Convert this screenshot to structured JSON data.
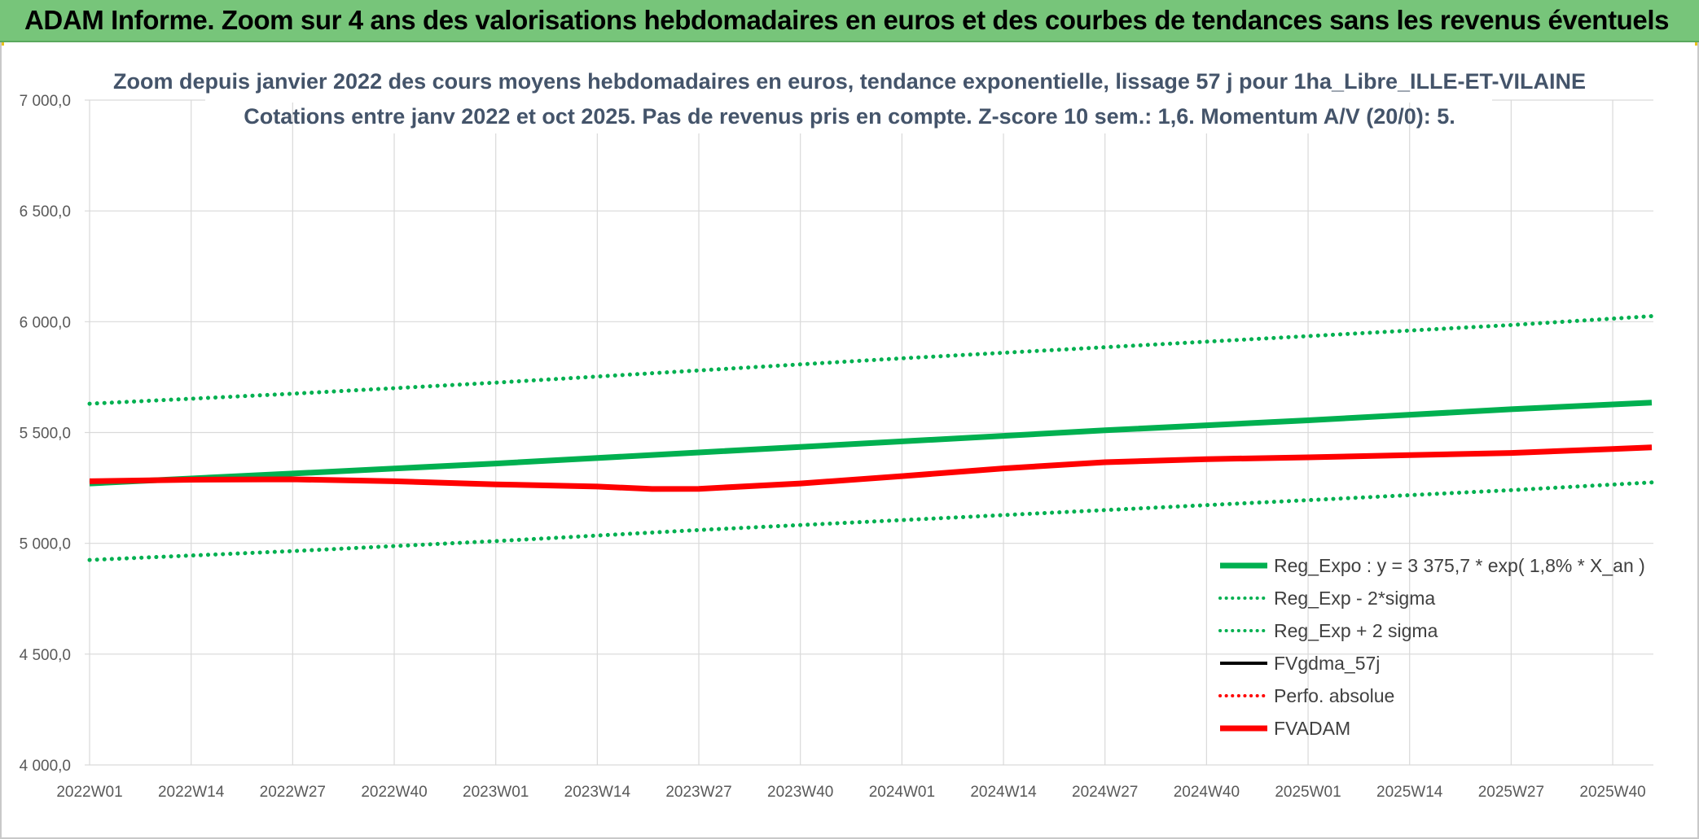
{
  "banner": {
    "title": "ADAM Informe. Zoom sur 4 ans des valorisations hebdomadaires en euros et des courbes de tendances sans les revenus éventuels"
  },
  "colors": {
    "banner_bg": "#77c57a",
    "green": "#00b050",
    "red": "#ff0000",
    "black": "#000000",
    "grid": "#d9d9d9"
  },
  "chart_data": {
    "type": "line",
    "title_line1": "Zoom depuis janvier 2022 des cours moyens hebdomadaires en euros, tendance exponentielle, lissage 57 j pour 1ha_Libre_ILLE-ET-VILAINE",
    "title_line2": "Cotations entre janv 2022 et oct 2025. Pas de revenus pris en compte. Z-score 10 sem.: 1,6. Momentum A/V (20/0): 5.",
    "ylim": [
      4000,
      7000
    ],
    "y_ticks": [
      "4 000,0",
      "4 500,0",
      "5 000,0",
      "5 500,0",
      "6 000,0",
      "6 500,0",
      "7 000,0"
    ],
    "y_tick_values": [
      4000,
      4500,
      5000,
      5500,
      6000,
      6500,
      7000
    ],
    "x_ticks": [
      "2022W01",
      "2022W14",
      "2022W27",
      "2022W40",
      "2023W01",
      "2023W14",
      "2023W27",
      "2023W40",
      "2024W01",
      "2024W14",
      "2024W27",
      "2024W40",
      "2025W01",
      "2025W14",
      "2025W27",
      "2025W40"
    ],
    "x_tick_weeks": [
      0,
      13,
      26,
      39,
      52,
      65,
      78,
      91,
      104,
      117,
      130,
      143,
      156,
      169,
      182,
      195
    ],
    "x_range_weeks": [
      0,
      200
    ],
    "legend_position": "bottom-right",
    "series": [
      {
        "name": "Reg_Expo : y = 3 375,7 * exp( 1,8% *  X_an )",
        "style": "solid-thick",
        "color": "#00b050",
        "x": [
          0,
          26,
          52,
          78,
          104,
          130,
          156,
          182,
          200
        ],
        "values": [
          5270,
          5315,
          5360,
          5410,
          5460,
          5510,
          5555,
          5605,
          5635
        ]
      },
      {
        "name": "Reg_Exp - 2*sigma",
        "style": "dotted",
        "color": "#00b050",
        "x": [
          0,
          26,
          52,
          78,
          104,
          130,
          156,
          182,
          200
        ],
        "values": [
          4925,
          4965,
          5010,
          5060,
          5105,
          5150,
          5195,
          5240,
          5275
        ]
      },
      {
        "name": "Reg_Exp + 2 sigma",
        "style": "dotted",
        "color": "#00b050",
        "x": [
          0,
          26,
          52,
          78,
          104,
          130,
          156,
          182,
          200
        ],
        "values": [
          5630,
          5675,
          5725,
          5780,
          5835,
          5885,
          5935,
          5985,
          6025
        ]
      },
      {
        "name": "FVgdma_57j",
        "style": "solid",
        "color": "#000000",
        "x": [
          0,
          13,
          26,
          39,
          52,
          65,
          72,
          78,
          91,
          104,
          117,
          130,
          143,
          156,
          169,
          182,
          195,
          200
        ],
        "values": [
          5282,
          5288,
          5290,
          5282,
          5268,
          5258,
          5248,
          5248,
          5272,
          5305,
          5340,
          5368,
          5382,
          5390,
          5400,
          5410,
          5428,
          5435
        ]
      },
      {
        "name": "Perfo. absolue",
        "style": "dotted",
        "color": "#ff0000",
        "x": [],
        "values": []
      },
      {
        "name": "FVADAM",
        "style": "solid-thick",
        "color": "#ff0000",
        "x": [
          0,
          13,
          26,
          39,
          52,
          65,
          72,
          78,
          91,
          104,
          117,
          130,
          143,
          156,
          169,
          182,
          195,
          200
        ],
        "values": [
          5280,
          5287,
          5289,
          5280,
          5266,
          5256,
          5245,
          5246,
          5270,
          5303,
          5338,
          5366,
          5380,
          5388,
          5398,
          5408,
          5426,
          5433
        ]
      }
    ]
  }
}
